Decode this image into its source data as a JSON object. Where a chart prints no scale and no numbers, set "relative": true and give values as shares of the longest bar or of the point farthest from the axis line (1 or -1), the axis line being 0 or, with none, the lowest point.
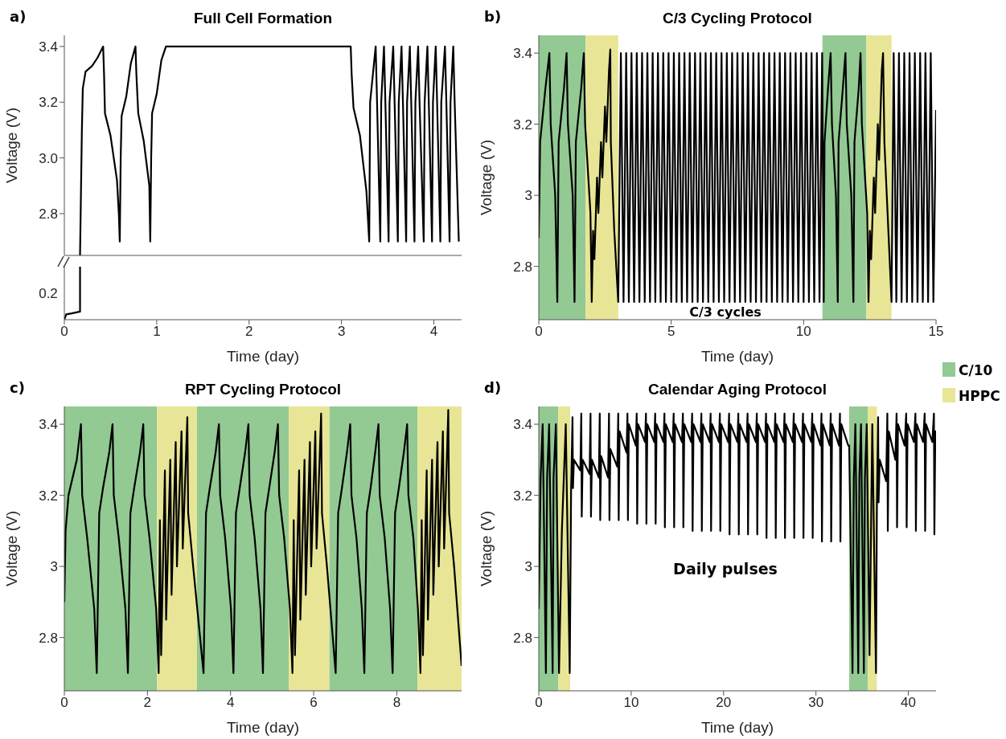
{
  "chart_data": [
    {
      "type": "line",
      "title": "Full Cell Formation",
      "ylabel": "Voltage (V)",
      "annotations": [
        "a)"
      ],
      "xlim": [
        0,
        4.3
      ],
      "xticks": [
        0,
        1,
        2,
        3,
        4
      ],
      "ylim": [
        2.65,
        3.44
      ],
      "yticks": [
        2.8,
        {
          "value": 3,
          "label": "3.0"
        },
        3.2,
        3.4
      ],
      "tick_labels": "y",
      "series": [
        {
          "color": "#000000",
          "x": [
            0.17,
            0.19,
            0.2,
            0.23,
            0.3,
            0.36,
            0.42,
            0.43,
            0.44,
            0.5,
            0.57,
            0.59,
            0.6,
            0.61,
            0.62,
            0.67,
            0.72,
            0.77,
            0.78,
            0.8,
            0.86,
            0.92,
            0.93,
            0.94,
            0.95,
            1.0,
            1.05,
            1.1,
            3.1,
            3.11,
            3.13,
            3.2,
            3.27,
            3.3,
            3.31,
            3.37,
            3.385,
            3.42,
            3.43,
            3.46,
            3.475,
            3.51,
            3.52,
            3.56,
            3.575,
            3.61,
            3.62,
            3.65,
            3.665,
            3.7,
            3.71,
            3.74,
            3.755,
            3.79,
            3.8,
            3.83,
            3.845,
            3.89,
            3.9,
            3.93,
            3.945,
            3.98,
            3.99,
            4.02,
            4.035,
            4.07,
            4.08,
            4.12,
            4.135,
            4.17,
            4.18,
            4.21,
            4.225,
            4.27
          ],
          "values": [
            2.65,
            3.1,
            3.25,
            3.31,
            3.33,
            3.36,
            3.4,
            3.3,
            3.16,
            3.08,
            2.92,
            2.8,
            2.7,
            3.0,
            3.15,
            3.22,
            3.34,
            3.4,
            3.3,
            3.16,
            3.06,
            2.9,
            2.7,
            3.0,
            3.16,
            3.23,
            3.35,
            3.4,
            3.4,
            3.3,
            3.18,
            3.08,
            2.88,
            2.7,
            3.2,
            3.4,
            3.2,
            2.7,
            3.2,
            3.4,
            3.2,
            2.7,
            3.2,
            3.4,
            3.2,
            2.7,
            3.2,
            3.4,
            3.2,
            2.7,
            3.2,
            3.4,
            3.2,
            2.7,
            3.2,
            3.4,
            3.2,
            2.7,
            3.2,
            3.4,
            3.2,
            2.7,
            3.2,
            3.4,
            3.2,
            2.7,
            3.2,
            3.4,
            3.2,
            2.7,
            3.2,
            3.4,
            3.2,
            2.7
          ]
        }
      ]
    },
    {
      "type": "line",
      "xlabel": "Time (day)",
      "relative": true,
      "annotations": [
        "0.2"
      ],
      "xlim": [
        0,
        4.3
      ],
      "xticks": [
        0,
        1,
        2,
        3,
        4
      ],
      "series": [
        {
          "color": "#000000",
          "x": [
            0,
            0.02,
            0.08,
            0.16,
            0.17,
            0.17
          ],
          "values": [
            0,
            0.1,
            0.12,
            0.15,
            0.15,
            1
          ]
        }
      ]
    },
    {
      "type": "line",
      "title": "C/3 Cycling Protocol",
      "xlabel": "Time (day)",
      "ylabel": "Voltage (V)",
      "annotations": [
        "b)",
        "C/3 cycles"
      ],
      "legend": "bottom right",
      "xlim": [
        0,
        15
      ],
      "xticks": [
        0,
        5,
        10,
        15
      ],
      "ylim": [
        2.65,
        3.45
      ],
      "yticks": [
        2.8,
        3,
        3.2,
        3.4
      ],
      "bands": [
        {
          "axis": "x",
          "from": 0,
          "to": 1.77,
          "label": "C/10",
          "color": "#93c993"
        },
        {
          "axis": "x",
          "from": 1.77,
          "to": 3.0,
          "label": "HPPC",
          "color": "#e8e696"
        },
        {
          "axis": "x",
          "from": 10.71,
          "to": 12.37,
          "color": "#93c993"
        },
        {
          "axis": "x",
          "from": 12.37,
          "to": 13.32,
          "color": "#e8e696"
        }
      ],
      "series": [
        {
          "color": "#000000",
          "x": [
            0,
            0.05,
            0.25,
            0.4,
            0.45,
            0.62,
            0.7,
            0.75,
            0.95,
            1.05,
            1.1,
            1.28,
            1.35,
            1.4,
            1.6,
            1.7,
            1.75,
            1.95,
            2.0,
            2.05,
            2.1,
            2.2,
            2.25,
            2.35,
            2.4,
            2.5,
            2.55,
            2.65,
            2.7,
            2.72,
            2.85,
            3.0,
            3.1,
            3.2,
            3.3,
            3.4,
            3.5,
            3.6,
            3.7,
            3.8,
            3.9,
            4,
            4.1,
            4.2,
            4.3,
            4.4,
            4.5,
            4.6,
            4.7,
            4.8,
            4.9,
            5,
            5.1,
            5.2,
            5.3,
            5.4,
            5.5,
            5.6,
            5.7,
            5.8,
            5.9,
            6,
            6.1,
            6.2,
            6.3,
            6.4,
            6.5,
            6.6,
            6.7,
            6.8,
            6.9,
            7,
            7.1,
            7.2,
            7.3,
            7.4,
            7.5,
            7.6,
            7.7,
            7.8,
            7.9,
            8,
            8.1,
            8.2,
            8.3,
            8.4,
            8.5,
            8.6,
            8.7,
            8.8,
            8.9,
            9,
            9.1,
            9.2,
            9.3,
            9.4,
            9.5,
            9.6,
            9.7,
            9.8,
            9.9,
            10,
            10.1,
            10.2,
            10.3,
            10.4,
            10.5,
            10.6,
            10.7,
            10.76,
            10.79,
            10.92,
            11.02,
            11.07,
            11.22,
            11.29,
            11.32,
            11.48,
            11.58,
            11.63,
            11.8,
            11.88,
            11.92,
            12.08,
            12.15,
            12.2,
            12.4,
            12.45,
            12.5,
            12.55,
            12.65,
            12.7,
            12.8,
            12.85,
            12.95,
            13.0,
            13.05,
            13.2,
            13.32,
            13.4,
            13.5,
            13.6,
            13.7,
            13.8,
            13.9,
            14,
            14.1,
            14.2,
            14.3,
            14.4,
            14.5,
            14.6,
            14.7,
            14.8,
            14.9,
            15
          ],
          "values": [
            2.88,
            3.15,
            3.3,
            3.4,
            3.2,
            3.0,
            2.7,
            3.15,
            3.3,
            3.4,
            3.2,
            3.0,
            2.7,
            3.15,
            3.3,
            3.4,
            3.2,
            2.95,
            2.7,
            2.9,
            2.82,
            3.05,
            2.95,
            3.15,
            3.05,
            3.25,
            3.15,
            3.35,
            3.41,
            3.15,
            2.9,
            2.7,
            3.4,
            2.7,
            3.4,
            2.7,
            3.4,
            2.7,
            3.4,
            2.7,
            3.4,
            2.7,
            3.4,
            2.7,
            3.4,
            2.7,
            3.4,
            2.7,
            3.4,
            2.7,
            3.4,
            2.7,
            3.4,
            2.7,
            3.4,
            2.7,
            3.4,
            2.7,
            3.4,
            2.7,
            3.4,
            2.7,
            3.4,
            2.7,
            3.4,
            2.7,
            3.4,
            2.7,
            3.4,
            2.7,
            3.4,
            2.7,
            3.4,
            2.7,
            3.4,
            2.7,
            3.4,
            2.7,
            3.4,
            2.7,
            3.4,
            2.7,
            3.4,
            2.7,
            3.4,
            2.7,
            3.4,
            2.7,
            3.4,
            2.7,
            3.4,
            2.7,
            3.4,
            2.7,
            3.4,
            2.7,
            3.4,
            2.7,
            3.4,
            2.7,
            3.4,
            2.7,
            3.4,
            2.7,
            3.4,
            2.7,
            3.4,
            2.7,
            3.4,
            2.7,
            3.15,
            3.3,
            3.4,
            3.2,
            3.0,
            2.7,
            3.15,
            3.3,
            3.4,
            3.2,
            3.0,
            2.7,
            3.15,
            3.3,
            3.4,
            3.2,
            2.95,
            2.7,
            2.9,
            2.82,
            3.05,
            2.95,
            3.2,
            3.1,
            3.35,
            3.4,
            3.15,
            2.9,
            2.7,
            3.4,
            2.7,
            3.4,
            2.7,
            3.4,
            2.7,
            3.4,
            2.7,
            3.4,
            2.7,
            3.4,
            2.7,
            3.4,
            2.7,
            3.4,
            2.7,
            3.24
          ]
        }
      ]
    },
    {
      "type": "line",
      "title": "RPT Cycling Protocol",
      "xlabel": "Time (day)",
      "ylabel": "Voltage (V)",
      "annotations": [
        "c)"
      ],
      "xlim": [
        0,
        9.56
      ],
      "xticks": [
        0,
        2,
        4,
        6,
        8
      ],
      "ylim": [
        2.65,
        3.45
      ],
      "yticks": [
        2.8,
        3,
        3.2,
        3.4
      ],
      "bands": [
        {
          "axis": "x",
          "from": 0,
          "to": 2.23,
          "color": "#93c993"
        },
        {
          "axis": "x",
          "from": 2.23,
          "to": 3.19,
          "color": "#e8e696"
        },
        {
          "axis": "x",
          "from": 3.19,
          "to": 5.4,
          "color": "#93c993"
        },
        {
          "axis": "x",
          "from": 5.4,
          "to": 6.38,
          "color": "#e8e696"
        },
        {
          "axis": "x",
          "from": 6.38,
          "to": 8.5,
          "color": "#93c993"
        },
        {
          "axis": "x",
          "from": 8.5,
          "to": 9.56,
          "color": "#e8e696"
        }
      ],
      "series": [
        {
          "color": "#000000",
          "x": [
            0,
            0.03,
            0.1,
            0.3,
            0.4,
            0.43,
            0.55,
            0.72,
            0.78,
            0.84,
            0.93,
            1.08,
            1.16,
            1.19,
            1.31,
            1.47,
            1.53,
            1.59,
            1.68,
            1.82,
            1.9,
            1.93,
            2.05,
            2.21,
            2.27,
            2.3,
            2.33,
            2.42,
            2.45,
            2.55,
            2.58,
            2.68,
            2.71,
            2.82,
            2.85,
            2.96,
            2.98,
            3.1,
            3.35,
            3.41,
            3.5,
            3.64,
            3.72,
            3.75,
            3.87,
            4.01,
            4.07,
            4.13,
            4.22,
            4.35,
            4.43,
            4.46,
            4.58,
            4.72,
            4.78,
            4.84,
            4.93,
            5.06,
            5.14,
            5.17,
            5.29,
            5.43,
            5.49,
            5.52,
            5.55,
            5.65,
            5.68,
            5.78,
            5.81,
            5.91,
            5.94,
            6.04,
            6.07,
            6.18,
            6.2,
            6.32,
            6.53,
            6.59,
            6.68,
            6.8,
            6.88,
            6.91,
            7.03,
            7.16,
            7.22,
            7.28,
            7.37,
            7.48,
            7.56,
            7.59,
            7.71,
            7.84,
            7.9,
            7.96,
            8.05,
            8.17,
            8.25,
            8.28,
            8.4,
            8.51,
            8.57,
            8.6,
            8.63,
            8.72,
            8.75,
            8.85,
            8.88,
            8.98,
            9.01,
            9.11,
            9.14,
            9.24,
            9.26,
            9.38,
            9.56
          ],
          "values": [
            2.9,
            3.1,
            3.2,
            3.3,
            3.4,
            3.2,
            3.08,
            2.88,
            2.7,
            3.15,
            3.22,
            3.32,
            3.4,
            3.2,
            3.08,
            2.88,
            2.7,
            3.15,
            3.22,
            3.32,
            3.4,
            3.2,
            3.08,
            2.88,
            2.7,
            3.13,
            2.75,
            3.27,
            2.85,
            3.3,
            2.92,
            3.35,
            3.0,
            3.38,
            3.05,
            3.42,
            3.15,
            3.0,
            2.7,
            3.15,
            3.22,
            3.32,
            3.4,
            3.2,
            3.08,
            2.88,
            2.7,
            3.15,
            3.22,
            3.32,
            3.4,
            3.2,
            3.08,
            2.88,
            2.7,
            3.15,
            3.22,
            3.32,
            3.4,
            3.2,
            3.08,
            2.88,
            2.7,
            3.13,
            2.75,
            3.27,
            2.85,
            3.3,
            2.92,
            3.35,
            3.0,
            3.38,
            3.05,
            3.43,
            3.15,
            3.0,
            2.7,
            3.15,
            3.22,
            3.32,
            3.4,
            3.2,
            3.08,
            2.88,
            2.7,
            3.15,
            3.22,
            3.32,
            3.4,
            3.2,
            3.08,
            2.88,
            2.7,
            3.15,
            3.22,
            3.32,
            3.4,
            3.2,
            3.08,
            2.88,
            2.7,
            3.13,
            2.75,
            3.27,
            2.85,
            3.3,
            2.92,
            3.35,
            3.0,
            3.38,
            3.05,
            3.44,
            3.15,
            3.0,
            2.72
          ]
        }
      ]
    },
    {
      "type": "line",
      "title": "Calendar Aging Protocol",
      "xlabel": "Time (day)",
      "ylabel": "Voltage (V)",
      "annotations": [
        "d)",
        "Daily pulses"
      ],
      "xlim": [
        0,
        43
      ],
      "xticks": [
        0,
        10,
        20,
        30,
        40
      ],
      "ylim": [
        2.65,
        3.45
      ],
      "yticks": [
        2.8,
        3,
        3.2,
        3.4
      ],
      "bands": [
        {
          "axis": "x",
          "from": 0,
          "to": 2.1,
          "color": "#93c993"
        },
        {
          "axis": "x",
          "from": 2.1,
          "to": 3.4,
          "color": "#e8e696"
        },
        {
          "axis": "x",
          "from": 33.6,
          "to": 35.6,
          "color": "#93c993"
        },
        {
          "axis": "x",
          "from": 35.6,
          "to": 36.6,
          "color": "#e8e696"
        }
      ],
      "series": [
        {
          "color": "#000000",
          "x": [
            0,
            0.2,
            0.42,
            0.77,
            0.9,
            1.12,
            1.5,
            1.6,
            1.85,
            2.19,
            2.5,
            2.92,
            3.35,
            3.5,
            3.65,
            3.7,
            3.8,
            4.5,
            4.6,
            4.65,
            4.75,
            5.5,
            5.6,
            5.65,
            5.75,
            6.5,
            6.6,
            6.65,
            6.75,
            7.5,
            7.6,
            7.65,
            7.75,
            8.5,
            8.6,
            8.65,
            8.75,
            9.5,
            9.6,
            9.65,
            9.75,
            10.5,
            10.6,
            10.65,
            10.75,
            11.5,
            11.6,
            11.65,
            11.75,
            12.5,
            12.6,
            12.65,
            12.75,
            13.5,
            13.6,
            13.65,
            13.75,
            14.5,
            14.6,
            14.65,
            14.75,
            15.5,
            15.6,
            15.65,
            15.75,
            16.5,
            16.6,
            16.65,
            16.75,
            17.5,
            17.6,
            17.65,
            17.75,
            18.5,
            18.6,
            18.65,
            18.75,
            19.5,
            19.6,
            19.65,
            19.75,
            20.5,
            20.6,
            20.65,
            20.75,
            21.5,
            21.6,
            21.65,
            21.75,
            22.5,
            22.6,
            22.65,
            22.75,
            23.5,
            23.6,
            23.65,
            23.75,
            24.5,
            24.6,
            24.65,
            24.75,
            25.5,
            25.6,
            25.65,
            25.75,
            26.5,
            26.6,
            26.65,
            26.75,
            27.5,
            27.6,
            27.65,
            27.75,
            28.5,
            28.6,
            28.65,
            28.75,
            29.5,
            29.6,
            29.65,
            29.75,
            30.5,
            30.6,
            30.65,
            30.75,
            31.5,
            31.6,
            31.65,
            31.75,
            32.5,
            32.6,
            32.65,
            32.75,
            33.5,
            33.6,
            33.96,
            34.1,
            34.27,
            34.58,
            34.7,
            34.88,
            35.19,
            35.3,
            35.5,
            35.8,
            36.1,
            36.5,
            36.6,
            36.73,
            36.78,
            36.9,
            37.6,
            37.73,
            37.78,
            37.88,
            38.6,
            38.73,
            38.78,
            38.88,
            39.6,
            39.77,
            39.82,
            39.92,
            40.6,
            40.77,
            40.82,
            40.92,
            41.6,
            41.77,
            41.82,
            41.92,
            42.6,
            42.77,
            42.82,
            42.92,
            43
          ],
          "values": [
            2.88,
            3.25,
            3.4,
            2.7,
            3.25,
            3.4,
            2.7,
            3.25,
            3.4,
            2.7,
            3.1,
            3.4,
            2.7,
            3.22,
            3.42,
            3.22,
            3.3,
            3.27,
            3.43,
            3.14,
            3.3,
            3.26,
            3.43,
            3.14,
            3.3,
            3.25,
            3.43,
            3.13,
            3.31,
            3.25,
            3.43,
            3.13,
            3.33,
            3.28,
            3.43,
            3.13,
            3.38,
            3.32,
            3.43,
            3.13,
            3.4,
            3.34,
            3.43,
            3.12,
            3.4,
            3.35,
            3.43,
            3.12,
            3.4,
            3.35,
            3.43,
            3.12,
            3.4,
            3.35,
            3.43,
            3.11,
            3.4,
            3.35,
            3.43,
            3.11,
            3.4,
            3.35,
            3.43,
            3.11,
            3.4,
            3.35,
            3.43,
            3.1,
            3.4,
            3.35,
            3.43,
            3.1,
            3.4,
            3.35,
            3.43,
            3.1,
            3.4,
            3.35,
            3.43,
            3.1,
            3.4,
            3.35,
            3.43,
            3.09,
            3.4,
            3.35,
            3.43,
            3.09,
            3.4,
            3.35,
            3.43,
            3.09,
            3.4,
            3.35,
            3.43,
            3.09,
            3.4,
            3.35,
            3.43,
            3.08,
            3.4,
            3.35,
            3.43,
            3.08,
            3.4,
            3.35,
            3.43,
            3.08,
            3.4,
            3.35,
            3.43,
            3.08,
            3.4,
            3.35,
            3.43,
            3.08,
            3.4,
            3.35,
            3.43,
            3.08,
            3.4,
            3.34,
            3.43,
            3.07,
            3.4,
            3.34,
            3.43,
            3.07,
            3.4,
            3.34,
            3.43,
            3.07,
            3.4,
            3.34,
            3.34,
            2.7,
            3.25,
            3.4,
            2.7,
            3.25,
            3.4,
            2.7,
            3.25,
            3.4,
            2.75,
            3.4,
            2.7,
            3.18,
            3.42,
            3.18,
            3.3,
            3.24,
            3.43,
            3.1,
            3.38,
            3.3,
            3.43,
            3.11,
            3.4,
            3.34,
            3.43,
            3.11,
            3.4,
            3.35,
            3.43,
            3.1,
            3.4,
            3.35,
            3.43,
            3.1,
            3.4,
            3.35,
            3.43,
            3.09,
            3.38,
            3.37
          ]
        }
      ]
    }
  ]
}
